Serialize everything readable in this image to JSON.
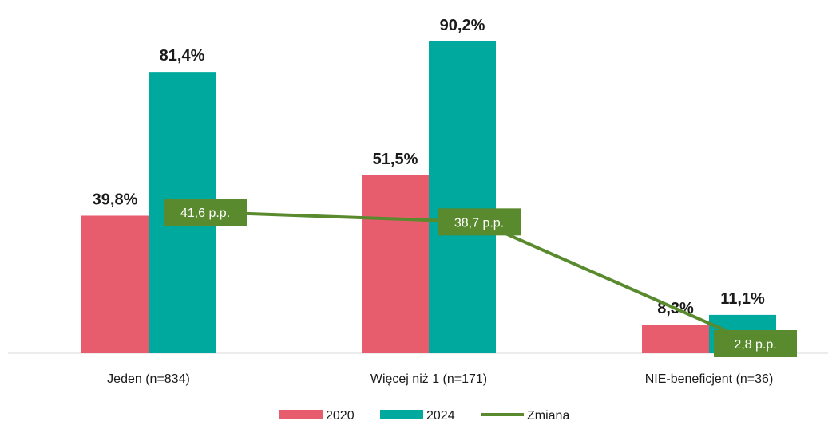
{
  "chart_data": {
    "type": "bar",
    "categories": [
      "Jeden (n=834)",
      "Więcej niż 1 (n=171)",
      "NIE-beneficjent (n=36)"
    ],
    "series": [
      {
        "name": "2020",
        "values": [
          39.8,
          51.5,
          8.3
        ],
        "labels": [
          "39,8%",
          "51,5%",
          "8,3%"
        ],
        "color": "#E85D6E"
      },
      {
        "name": "2024",
        "values": [
          81.4,
          90.2,
          11.1
        ],
        "labels": [
          "81,4%",
          "90,2%",
          "11,1%"
        ],
        "color": "#00A99D"
      }
    ],
    "line_series": {
      "name": "Zmiana",
      "values": [
        41.6,
        38.7,
        2.8
      ],
      "labels": [
        "41,6 p.p.",
        "38,7 p.p.",
        "2,8 p.p."
      ],
      "color": "#5A8A2E",
      "label_bg": "#5A8A2E"
    },
    "ylim": [
      0,
      100
    ],
    "legend": "bottom",
    "grid": false
  }
}
